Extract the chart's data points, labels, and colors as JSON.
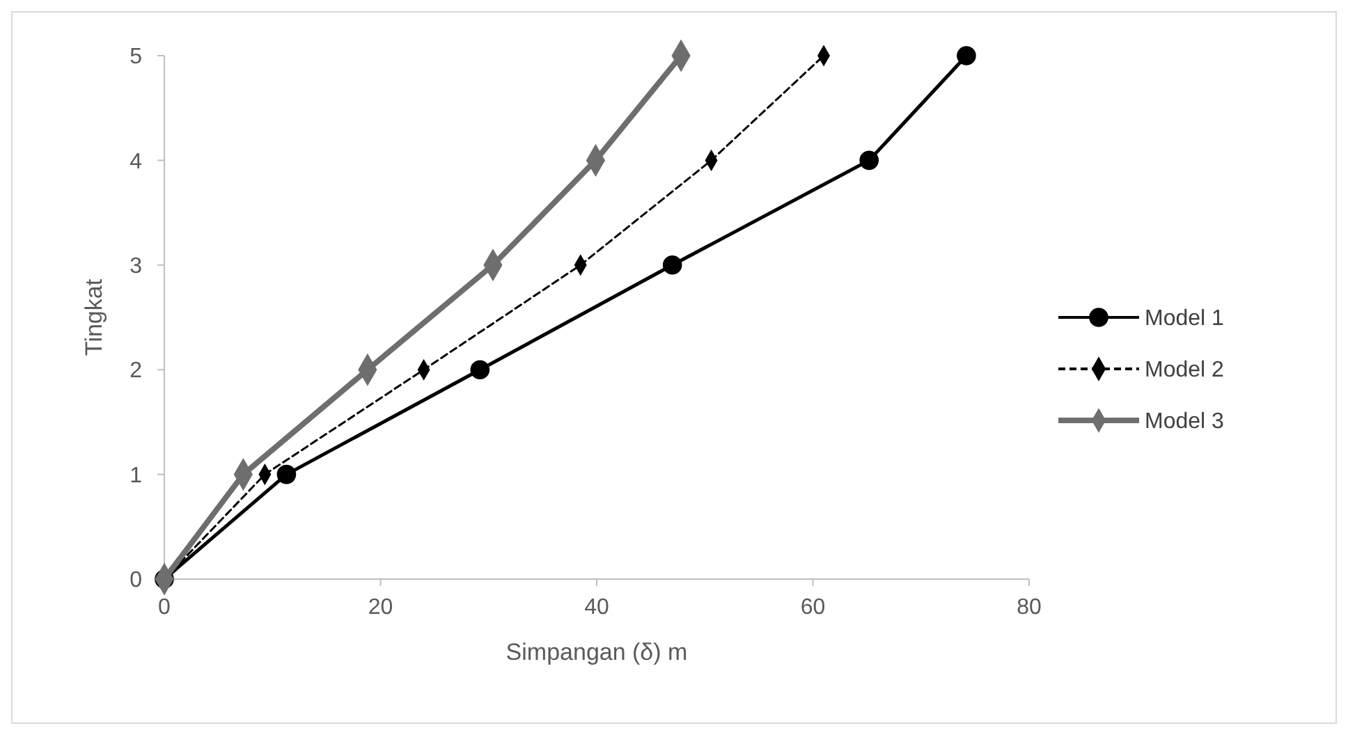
{
  "chart_data": {
    "type": "line",
    "xlabel": "Simpangan (δ) m",
    "ylabel": "Tingkat",
    "xlim": [
      0,
      80
    ],
    "xticks": [
      0,
      20,
      40,
      60,
      80
    ],
    "ylim": [
      0,
      5
    ],
    "yticks": [
      0,
      1,
      2,
      3,
      4,
      5
    ],
    "grid": false,
    "legend": "right",
    "series": [
      {
        "name": "Model 1",
        "color": "#000000",
        "marker": "circle",
        "line_style": "solid",
        "x": [
          0,
          11.3,
          29.2,
          47,
          65.2,
          74.2
        ],
        "values": [
          0,
          1,
          2,
          3,
          4,
          5
        ]
      },
      {
        "name": "Model 2",
        "color": "#000000",
        "marker": "diamond",
        "line_style": "dashed",
        "x": [
          0,
          9.3,
          24,
          38.5,
          50.6,
          61
        ],
        "values": [
          0,
          1,
          2,
          3,
          4,
          5
        ]
      },
      {
        "name": "Model 3",
        "color": "#6e6e6e",
        "marker": "diamond",
        "line_style": "solid",
        "x": [
          0,
          7.3,
          18.8,
          30.4,
          39.9,
          47.8
        ],
        "values": [
          0,
          1,
          2,
          3,
          4,
          5
        ]
      }
    ]
  }
}
